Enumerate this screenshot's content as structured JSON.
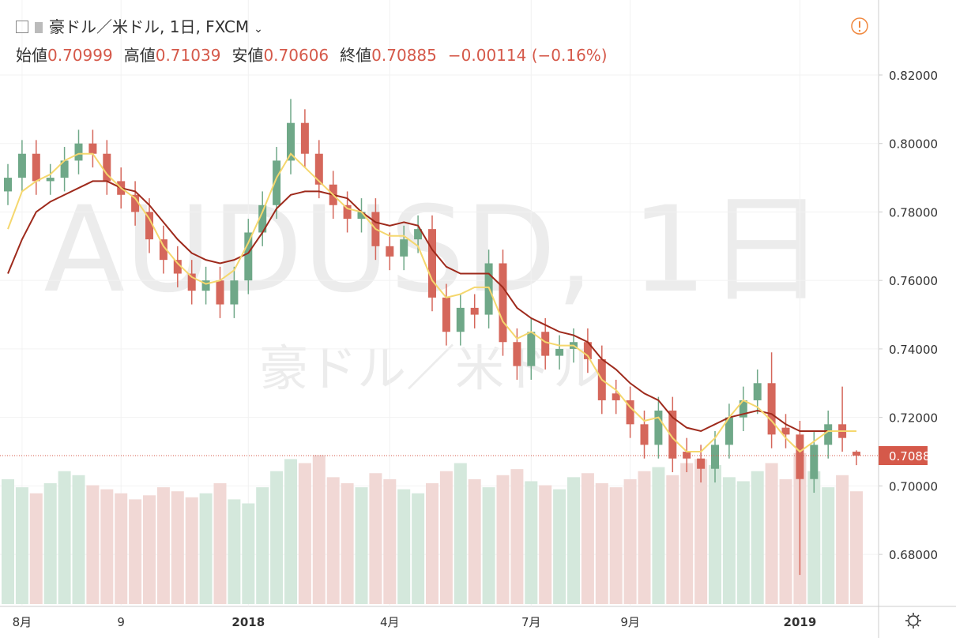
{
  "chart_data": {
    "type": "candlestick",
    "title": "豪ドル／米ドル, 1日, FXCM",
    "ohlc_labels": [
      "始値",
      "高値",
      "安値",
      "終値"
    ],
    "change_text": "−0.00114 (−0.16%)",
    "watermark": "AUDUSD, 1日",
    "watermark_subtitle": "豪ドル／米ドル",
    "categories": [
      null,
      "8月",
      null,
      null,
      null,
      null,
      null,
      null,
      "9",
      null,
      null,
      null,
      null,
      null,
      null,
      null,
      null,
      "2018",
      null,
      null,
      null,
      null,
      null,
      null,
      null,
      null,
      null,
      "4月",
      null,
      null,
      null,
      null,
      null,
      null,
      null,
      null,
      null,
      "7月",
      null,
      null,
      null,
      null,
      null,
      null,
      "9月",
      null,
      null,
      null,
      null,
      null,
      null,
      null,
      null,
      null,
      null,
      null,
      "2019",
      null,
      null,
      null,
      null
    ],
    "open": [
      0.786,
      0.79,
      0.797,
      0.789,
      0.79,
      0.795,
      0.8,
      0.797,
      0.789,
      0.785,
      0.78,
      0.772,
      0.766,
      0.762,
      0.757,
      0.76,
      0.753,
      0.76,
      0.774,
      0.782,
      0.795,
      0.806,
      0.797,
      0.788,
      0.782,
      0.778,
      0.78,
      0.77,
      0.767,
      0.772,
      0.775,
      0.755,
      0.745,
      0.752,
      0.75,
      0.765,
      0.742,
      0.735,
      0.745,
      0.738,
      0.74,
      0.742,
      0.737,
      0.727,
      0.725,
      0.718,
      0.712,
      0.722,
      0.71,
      0.708,
      0.705,
      0.712,
      0.72,
      0.725,
      0.73,
      0.717,
      0.715,
      0.702,
      0.712,
      0.718,
      0.70999
    ],
    "high": [
      0.794,
      0.801,
      0.801,
      0.794,
      0.799,
      0.804,
      0.804,
      0.801,
      0.793,
      0.789,
      0.784,
      0.776,
      0.77,
      0.766,
      0.764,
      0.764,
      0.764,
      0.778,
      0.786,
      0.799,
      0.813,
      0.81,
      0.801,
      0.792,
      0.786,
      0.784,
      0.784,
      0.774,
      0.776,
      0.779,
      0.779,
      0.759,
      0.756,
      0.756,
      0.769,
      0.769,
      0.746,
      0.749,
      0.749,
      0.744,
      0.746,
      0.746,
      0.741,
      0.731,
      0.729,
      0.722,
      0.726,
      0.726,
      0.714,
      0.712,
      0.716,
      0.724,
      0.729,
      0.734,
      0.739,
      0.721,
      0.719,
      0.716,
      0.722,
      0.729,
      0.71039
    ],
    "low": [
      0.782,
      0.786,
      0.785,
      0.785,
      0.786,
      0.791,
      0.793,
      0.785,
      0.781,
      0.776,
      0.768,
      0.762,
      0.758,
      0.753,
      0.753,
      0.749,
      0.749,
      0.756,
      0.77,
      0.778,
      0.791,
      0.793,
      0.784,
      0.778,
      0.774,
      0.774,
      0.766,
      0.763,
      0.763,
      0.768,
      0.751,
      0.741,
      0.741,
      0.746,
      0.746,
      0.738,
      0.731,
      0.731,
      0.734,
      0.734,
      0.736,
      0.733,
      0.721,
      0.721,
      0.714,
      0.708,
      0.708,
      0.704,
      0.704,
      0.701,
      0.701,
      0.708,
      0.716,
      0.721,
      0.711,
      0.711,
      0.674,
      0.698,
      0.708,
      0.71,
      0.70606
    ],
    "close": [
      0.79,
      0.797,
      0.789,
      0.79,
      0.795,
      0.8,
      0.797,
      0.789,
      0.785,
      0.78,
      0.772,
      0.766,
      0.762,
      0.757,
      0.76,
      0.753,
      0.76,
      0.774,
      0.782,
      0.795,
      0.806,
      0.797,
      0.788,
      0.782,
      0.778,
      0.78,
      0.77,
      0.767,
      0.772,
      0.775,
      0.755,
      0.745,
      0.752,
      0.75,
      0.765,
      0.742,
      0.735,
      0.745,
      0.738,
      0.74,
      0.742,
      0.737,
      0.725,
      0.725,
      0.718,
      0.712,
      0.722,
      0.708,
      0.708,
      0.705,
      0.712,
      0.72,
      0.725,
      0.73,
      0.715,
      0.715,
      0.702,
      0.712,
      0.718,
      0.714,
      0.70885
    ],
    "volume": [
      62,
      58,
      55,
      60,
      66,
      64,
      59,
      57,
      55,
      52,
      54,
      58,
      56,
      53,
      55,
      60,
      52,
      50,
      58,
      66,
      72,
      70,
      74,
      63,
      60,
      58,
      65,
      62,
      57,
      55,
      60,
      66,
      70,
      62,
      58,
      64,
      67,
      61,
      59,
      57,
      63,
      65,
      60,
      58,
      62,
      66,
      68,
      64,
      70,
      72,
      69,
      63,
      61,
      66,
      70,
      62,
      75,
      66,
      58,
      64,
      56
    ],
    "volume_colors": {
      "up": "#d4e8dc",
      "down": "#f1d8d5"
    },
    "up_color": "#6fa888",
    "down_color": "#d5675b",
    "ma": [
      {
        "color": "#9e2a1c",
        "values": [
          0.762,
          0.772,
          0.78,
          0.783,
          0.785,
          0.787,
          0.789,
          0.789,
          0.787,
          0.786,
          0.782,
          0.777,
          0.772,
          0.768,
          0.766,
          0.765,
          0.766,
          0.768,
          0.774,
          0.781,
          0.785,
          0.786,
          0.786,
          0.785,
          0.784,
          0.78,
          0.777,
          0.776,
          0.777,
          0.776,
          0.769,
          0.764,
          0.762,
          0.762,
          0.762,
          0.758,
          0.752,
          0.749,
          0.747,
          0.745,
          0.744,
          0.742,
          0.737,
          0.734,
          0.73,
          0.727,
          0.725,
          0.72,
          0.717,
          0.716,
          0.718,
          0.72,
          0.721,
          0.722,
          0.721,
          0.718,
          0.716,
          0.716,
          0.716,
          0.716,
          0.716
        ]
      },
      {
        "color": "#f5d76e",
        "values": [
          0.775,
          0.786,
          0.789,
          0.791,
          0.795,
          0.797,
          0.797,
          0.791,
          0.787,
          0.784,
          0.778,
          0.77,
          0.765,
          0.761,
          0.759,
          0.76,
          0.763,
          0.771,
          0.78,
          0.79,
          0.797,
          0.793,
          0.789,
          0.785,
          0.781,
          0.78,
          0.775,
          0.773,
          0.773,
          0.77,
          0.76,
          0.755,
          0.756,
          0.758,
          0.758,
          0.748,
          0.743,
          0.745,
          0.742,
          0.741,
          0.741,
          0.738,
          0.731,
          0.728,
          0.723,
          0.719,
          0.72,
          0.714,
          0.71,
          0.71,
          0.714,
          0.72,
          0.725,
          0.723,
          0.719,
          0.714,
          0.71,
          0.713,
          0.716,
          0.716,
          0.716
        ]
      }
    ],
    "ylim": [
      0.6655,
      0.8419
    ],
    "yticks": [
      {
        "value": 0.68,
        "label": "0.68000"
      },
      {
        "value": 0.7,
        "label": "0.70000"
      },
      {
        "value": 0.72,
        "label": "0.72000"
      },
      {
        "value": 0.74,
        "label": "0.74000"
      },
      {
        "value": 0.76,
        "label": "0.76000"
      },
      {
        "value": 0.78,
        "label": "0.78000"
      },
      {
        "value": 0.8,
        "label": "0.80000"
      },
      {
        "value": 0.82,
        "label": "0.82000"
      }
    ],
    "grid": true,
    "last_price_color": "#d5594a"
  }
}
